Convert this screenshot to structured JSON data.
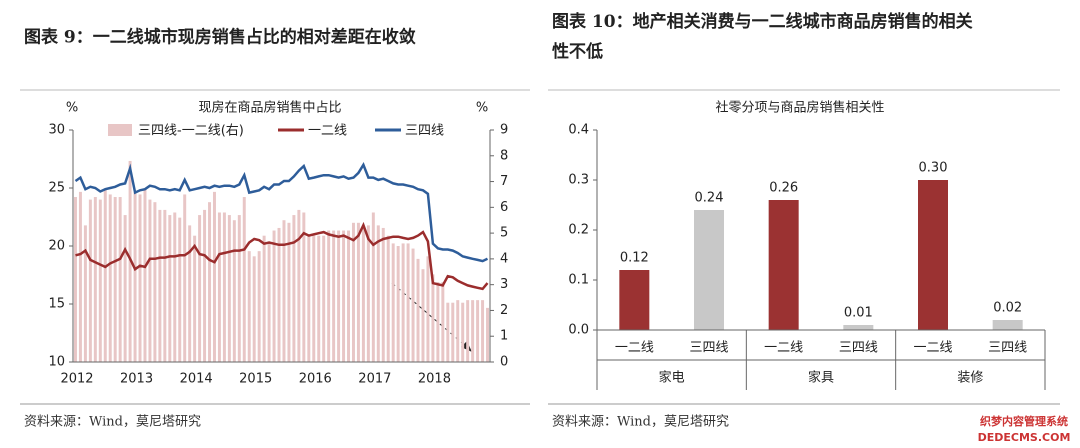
{
  "chart_data": [
    {
      "type": "combo",
      "caption": "图表 9：一二线城市现房销售占比的相对差距在收敛",
      "title": "现房在商品房销售中占比",
      "source": "资料来源：Wind，莫尼塔研究",
      "ylabel": "%",
      "y2label": "%",
      "categories": [
        "2012",
        null,
        null,
        null,
        null,
        null,
        null,
        null,
        null,
        null,
        null,
        null,
        "2013",
        null,
        null,
        null,
        null,
        null,
        null,
        null,
        null,
        null,
        null,
        null,
        "2014",
        null,
        null,
        null,
        null,
        null,
        null,
        null,
        null,
        null,
        null,
        null,
        "2015",
        null,
        null,
        null,
        null,
        null,
        null,
        null,
        null,
        null,
        null,
        null,
        "2016",
        null,
        null,
        null,
        null,
        null,
        null,
        null,
        null,
        null,
        null,
        null,
        "2017",
        null,
        null,
        null,
        null,
        null,
        null,
        null,
        null,
        null,
        null,
        null,
        "2018",
        null,
        null,
        null,
        null,
        null,
        null,
        null,
        null,
        null,
        null,
        null
      ],
      "ylim": [
        10,
        30
      ],
      "yticks": [
        10,
        15,
        20,
        25,
        30
      ],
      "y2lim": [
        0,
        9
      ],
      "y2ticks": [
        0,
        1,
        2,
        3,
        4,
        5,
        6,
        7,
        8,
        9
      ],
      "series": [
        {
          "name": "三四线-一二线(右)",
          "type": "bar",
          "axis": "y2",
          "color": "#e8c6c6",
          "values": [
            6.4,
            6.6,
            5.3,
            6.3,
            6.4,
            6.3,
            6.7,
            6.5,
            6.4,
            6.4,
            5.7,
            7.8,
            6.6,
            6.5,
            6.7,
            6.3,
            6.2,
            5.9,
            5.9,
            5.7,
            5.8,
            5.6,
            6.5,
            5.3,
            4.9,
            5.7,
            5.9,
            6.2,
            6.6,
            5.8,
            5.8,
            5.7,
            5.5,
            5.7,
            6.4,
            4.3,
            4.1,
            4.3,
            4.9,
            4.6,
            5.1,
            5.2,
            5.5,
            5.4,
            5.7,
            5.9,
            5.8,
            4.9,
            4.9,
            4.9,
            4.9,
            5.1,
            5.1,
            5.1,
            5.1,
            5.1,
            5.4,
            5.4,
            5.2,
            5.3,
            5.8,
            5.3,
            5.2,
            4.9,
            4.6,
            4.5,
            4.6,
            4.6,
            4.4,
            4.0,
            3.6,
            4.1,
            3.4,
            3.1,
            3.1,
            2.3,
            2.3,
            2.4,
            2.3,
            2.4,
            2.4,
            2.4,
            2.4,
            2.1
          ]
        },
        {
          "name": "一二线",
          "type": "line",
          "color": "#9b2d2d",
          "values": [
            19.2,
            19.3,
            19.6,
            18.8,
            18.6,
            18.4,
            18.2,
            18.5,
            18.7,
            18.9,
            19.7,
            18.9,
            18.0,
            18.3,
            18.2,
            18.9,
            18.9,
            19.0,
            19.0,
            19.1,
            19.1,
            19.2,
            19.2,
            19.5,
            20.0,
            19.3,
            19.2,
            18.8,
            18.6,
            19.3,
            19.4,
            19.5,
            19.6,
            19.6,
            19.7,
            20.3,
            20.6,
            20.5,
            20.2,
            20.3,
            20.2,
            20.1,
            20.1,
            20.2,
            20.3,
            20.6,
            21.1,
            20.9,
            21.0,
            21.1,
            21.2,
            21.0,
            20.9,
            20.8,
            20.9,
            20.7,
            20.5,
            20.9,
            21.8,
            20.6,
            20.1,
            20.4,
            20.6,
            20.7,
            20.8,
            20.8,
            20.7,
            20.6,
            20.7,
            20.9,
            21.2,
            20.4,
            16.8,
            16.7,
            16.6,
            17.4,
            17.3,
            17.0,
            16.8,
            16.6,
            16.5,
            16.4,
            16.3,
            16.8
          ]
        },
        {
          "name": "三四线",
          "type": "line",
          "color": "#2e5d9a",
          "values": [
            25.6,
            25.9,
            24.9,
            25.1,
            25.0,
            24.7,
            24.9,
            25.0,
            25.1,
            25.3,
            25.4,
            26.7,
            24.6,
            24.8,
            24.9,
            25.2,
            25.1,
            24.9,
            24.9,
            24.8,
            24.9,
            24.8,
            25.7,
            24.8,
            24.9,
            25.0,
            25.1,
            25.0,
            25.2,
            25.1,
            25.2,
            25.2,
            25.1,
            25.3,
            26.1,
            24.6,
            24.7,
            24.8,
            25.1,
            24.9,
            25.3,
            25.3,
            25.6,
            25.6,
            26.0,
            26.5,
            26.9,
            25.8,
            25.9,
            26.0,
            26.1,
            26.1,
            26.0,
            25.9,
            26.0,
            25.8,
            25.9,
            26.3,
            27.0,
            25.9,
            25.9,
            25.7,
            25.8,
            25.6,
            25.4,
            25.3,
            25.3,
            25.2,
            25.1,
            24.9,
            24.8,
            24.5,
            20.2,
            19.8,
            19.7,
            19.7,
            19.6,
            19.4,
            19.1,
            19.0,
            18.9,
            18.8,
            18.7,
            18.9
          ]
        }
      ]
    },
    {
      "type": "bar",
      "caption": "图表 10：地产相关消费与一二线城市商品房销售的相关性不低",
      "title": "社零分项与商品房销售相关性",
      "source": "资料来源：Wind，莫尼塔研究",
      "categories": [
        "一二线",
        "三四线",
        "一二线",
        "三四线",
        "一二线",
        "三四线"
      ],
      "groups": [
        "家电",
        "家具",
        "装修"
      ],
      "values": [
        0.12,
        0.24,
        0.26,
        0.01,
        0.3,
        0.02
      ],
      "value_labels": [
        "0.12",
        "0.24",
        "0.26",
        "0.01",
        "0.30",
        "0.02"
      ],
      "colors": [
        "#9b3232",
        "#c8c8c8",
        "#9b3232",
        "#c8c8c8",
        "#9b3232",
        "#c8c8c8"
      ],
      "ylim": [
        0,
        0.4
      ],
      "yticks": [
        {
          "value": 0,
          "label": "0.0"
        },
        0.1,
        0.2,
        0.3,
        0.4
      ]
    }
  ],
  "watermark": [
    "织梦内容管理系统",
    "DEDECMS.COM"
  ]
}
